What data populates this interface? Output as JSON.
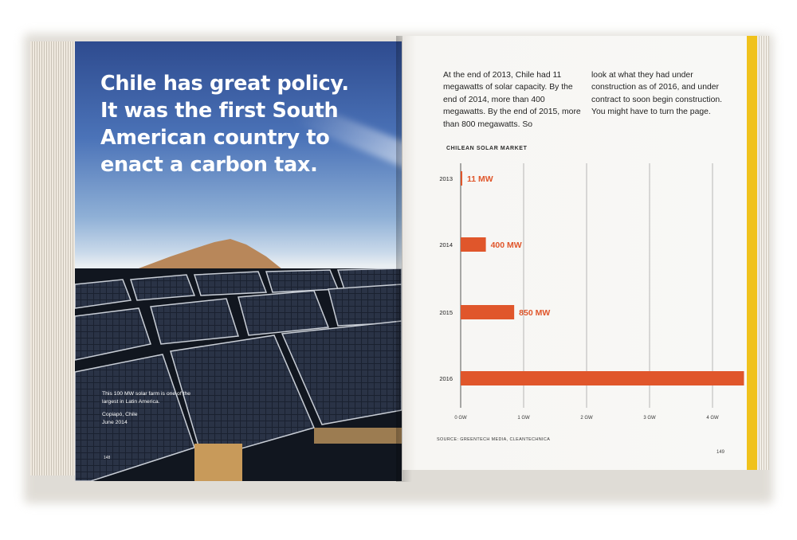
{
  "left_page": {
    "headline": "Chile has great policy. It was the first South American country to enact a carbon tax.",
    "caption": "This 100 MW solar farm is one of the largest in Latin America.",
    "location": "Copiapó, Chile",
    "date": "June 2014",
    "folio": "148"
  },
  "right_page": {
    "body_col1": "At the end of 2013, Chile had 11 megawatts of solar capacity. By the end of 2014, more than 400 megawatts. By the end of 2015, more than 800 megawatts. So",
    "body_col2": "look at what they had under construction as of 2016, and under contract to soon begin construction. You might have to turn the page.",
    "source": "SOURCE: GREENTECH MEDIA, CLEANTECHNICA",
    "folio": "149"
  },
  "chart_data": {
    "type": "bar",
    "orientation": "horizontal",
    "title": "CHILEAN SOLAR MARKET",
    "categories": [
      "2013",
      "2014",
      "2015",
      "2016"
    ],
    "values_mw": [
      11,
      400,
      850,
      4500
    ],
    "data_labels": [
      "11 MW",
      "400 MW",
      "850 MW",
      ""
    ],
    "x_ticks": [
      "0 GW",
      "1 GW",
      "2 GW",
      "3 GW",
      "4 GW"
    ],
    "x_tick_values_mw": [
      0,
      1000,
      2000,
      3000,
      4000
    ],
    "xlim_mw": [
      0,
      4000
    ],
    "bar_color": "#e0562b",
    "grid": true
  },
  "colors": {
    "accent": "#e0562b",
    "spine_edge": "#f0c21c"
  }
}
